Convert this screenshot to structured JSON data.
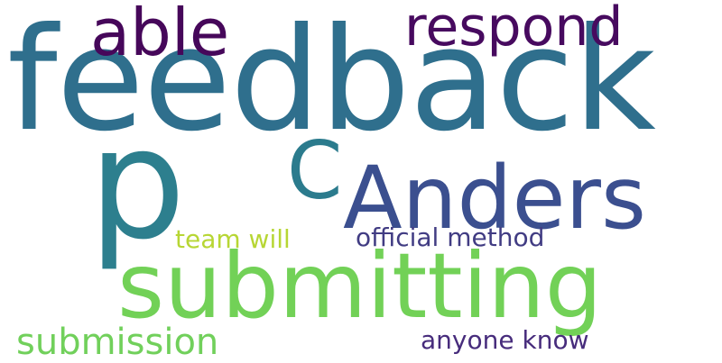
{
  "wordcloud": {
    "words": [
      {
        "text": "feedback",
        "color": "#2f6f8d"
      },
      {
        "text": "p",
        "color": "#2d7f8e"
      },
      {
        "text": "able",
        "color": "#46075a"
      },
      {
        "text": "respond",
        "color": "#470a5f"
      },
      {
        "text": "C",
        "color": "#2b7b8d"
      },
      {
        "text": "Anders",
        "color": "#3b4f8f"
      },
      {
        "text": "submitting",
        "color": "#72d157"
      },
      {
        "text": "team will",
        "color": "#b7d634"
      },
      {
        "text": "official method",
        "color": "#413c83"
      },
      {
        "text": "submission",
        "color": "#71d05b"
      },
      {
        "text": "anyone know",
        "color": "#472c7c"
      }
    ]
  }
}
